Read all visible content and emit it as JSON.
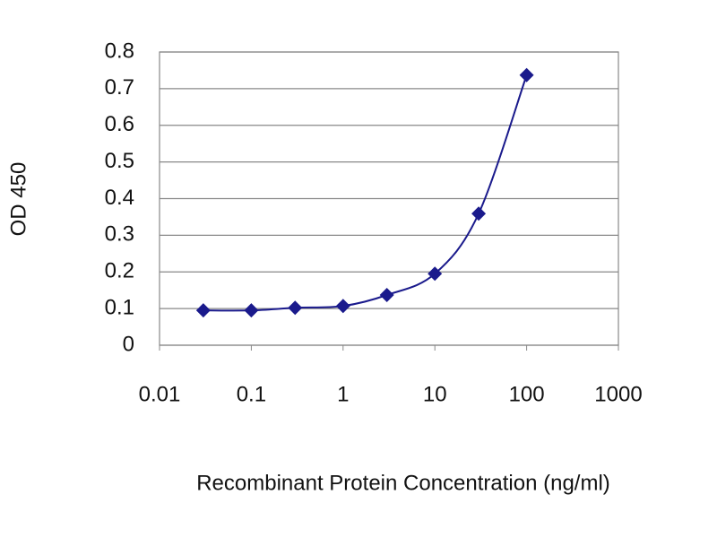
{
  "chart_data": {
    "type": "line",
    "xlabel": "Recombinant Protein Concentration (ng/ml)",
    "ylabel": "OD 450",
    "xscale": "log",
    "xlim": [
      0.01,
      1000
    ],
    "xticks": [
      0.01,
      0.1,
      1,
      10,
      100,
      1000
    ],
    "ylim": [
      0,
      0.8
    ],
    "yticks": [
      0,
      0.1,
      0.2,
      0.3,
      0.4,
      0.5,
      0.6,
      0.7,
      0.8
    ],
    "grid": true,
    "series": [
      {
        "color": "#1a1a8c",
        "x": [
          0.03,
          0.1,
          0.3,
          1,
          3,
          10,
          30,
          100
        ],
        "values": [
          0.095,
          0.095,
          0.102,
          0.107,
          0.137,
          0.195,
          0.359,
          0.737
        ]
      }
    ]
  }
}
